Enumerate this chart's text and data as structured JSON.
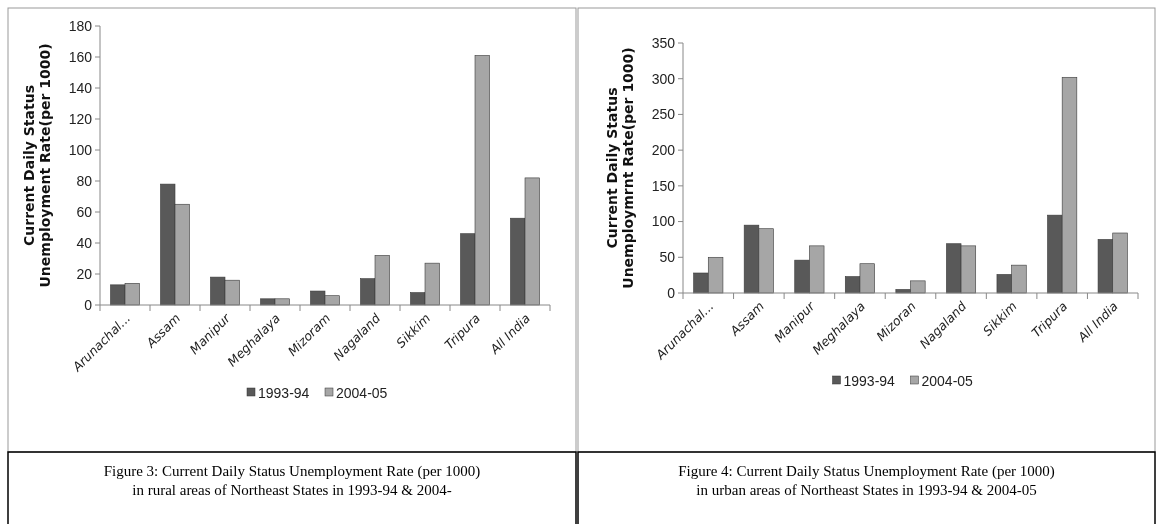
{
  "chart_data": [
    {
      "type": "bar",
      "ylabel": "Current Daily Status\nUnemployment Rate(per 1000)",
      "categories": [
        "Arunachal...",
        "Assam",
        "Manipur",
        "Meghalaya",
        "Mizoram",
        "Nagaland",
        "Sikkim",
        "Tripura",
        "All India"
      ],
      "series": [
        {
          "name": "1993-94",
          "color": "#595959",
          "values": [
            13,
            78,
            18,
            4,
            9,
            17,
            8,
            46,
            56
          ]
        },
        {
          "name": "2004-05",
          "color": "#a6a6a6",
          "values": [
            14,
            65,
            16,
            4,
            6,
            32,
            27,
            161,
            82
          ]
        }
      ],
      "ylim": [
        0,
        180
      ],
      "yticks": [
        0,
        20,
        40,
        60,
        80,
        100,
        120,
        140,
        160,
        180
      ],
      "legend": "bottom",
      "annotations": [
        "Figure 3: Current Daily Status Unemployment Rate (per 1000) in rural areas of Northeast States in 1993-94 & 2004-"
      ]
    },
    {
      "type": "bar",
      "ylabel": "Current Daily Status\nUnemploymrnt Rate(per 1000)",
      "categories": [
        "Arunachal...",
        "Assam",
        "Manipur",
        "Meghalaya",
        "Mizoran",
        "Nagaland",
        "Sikkim",
        "Tripura",
        "All India"
      ],
      "series": [
        {
          "name": "1993-94",
          "color": "#595959",
          "values": [
            28,
            95,
            46,
            23,
            5,
            69,
            26,
            109,
            75
          ]
        },
        {
          "name": "2004-05",
          "color": "#a6a6a6",
          "values": [
            50,
            90,
            66,
            41,
            17,
            66,
            39,
            302,
            84
          ]
        }
      ],
      "ylim": [
        0,
        350
      ],
      "yticks": [
        0,
        50,
        100,
        150,
        200,
        250,
        300,
        350
      ],
      "legend": "bottom",
      "annotations": [
        "Figure 4: Current Daily Status Unemployment Rate (per 1000) in urban areas of Northeast States in 1993-94 & 2004-05"
      ]
    }
  ]
}
